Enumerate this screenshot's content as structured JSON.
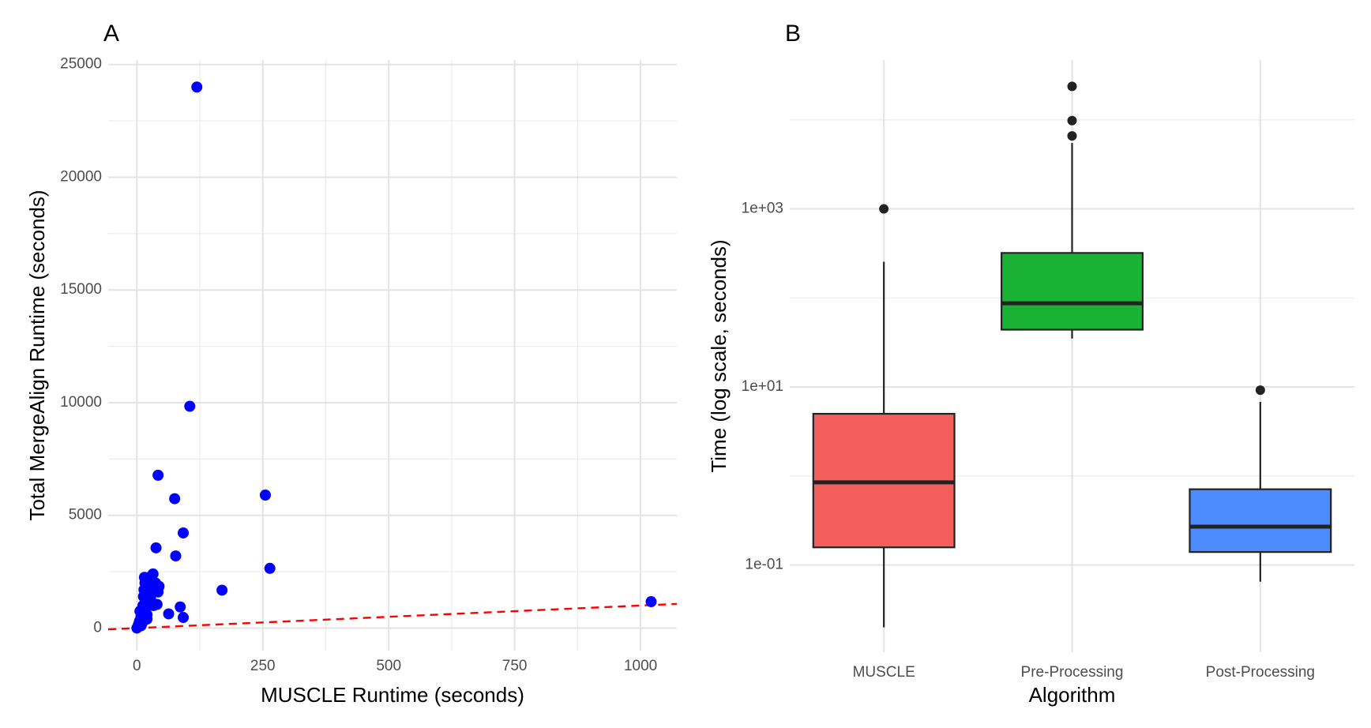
{
  "chart_data": [
    {
      "type": "scatter",
      "panel": "A",
      "x_label": "MUSCLE Runtime (seconds)",
      "y_label": "Total MergeAlign Runtime (seconds)",
      "color": "#0000ff",
      "x": [
        119,
        105,
        42,
        75,
        255,
        92,
        38,
        77,
        264,
        169,
        1021,
        86,
        92,
        63,
        0,
        2,
        3,
        5,
        6,
        8,
        10,
        12,
        13,
        14,
        15,
        17,
        18,
        20,
        22,
        24,
        25,
        27,
        28,
        30,
        32,
        33,
        35,
        37,
        40,
        42,
        44,
        20,
        8,
        16
      ],
      "values": [
        24000,
        9840,
        6780,
        5740,
        5900,
        4220,
        3560,
        3200,
        2650,
        1680,
        1170,
        940,
        470,
        630,
        0,
        50,
        150,
        300,
        750,
        500,
        200,
        1000,
        1400,
        1700,
        2250,
        1200,
        900,
        600,
        1800,
        2100,
        1500,
        1300,
        2300,
        1700,
        2400,
        1000,
        1900,
        2000,
        1050,
        1600,
        1850,
        400,
        100,
        2000
      ],
      "xlim": [
        -57,
        1072
      ],
      "ylim": [
        -1000,
        25200
      ],
      "xticks": [
        0,
        250,
        500,
        750,
        1000
      ],
      "yticks": [
        0,
        5000,
        10000,
        15000,
        20000,
        25000
      ],
      "grid": true,
      "minor_grid": true,
      "reference_line": {
        "slope": 1,
        "intercept": 0,
        "color": "#ff0000",
        "style": "dashed"
      }
    },
    {
      "type": "box",
      "panel": "B",
      "x_label": "Algorithm",
      "y_label": "Time (log scale, seconds)",
      "categories": [
        "MUSCLE",
        "Pre-Processing",
        "Post-Processing"
      ],
      "boxes": [
        {
          "color": "#f25f5c",
          "whisker_low": 0.02,
          "q1": 0.158,
          "median": 0.85,
          "q3": 5.0,
          "whisker_high": 255,
          "outliers": [
            1000
          ]
        },
        {
          "color": "#1ab235",
          "whisker_low": 35,
          "q1": 44,
          "median": 87,
          "q3": 320,
          "whisker_high": 5500,
          "outliers": [
            6600,
            9800,
            23800
          ]
        },
        {
          "color": "#4d8cff",
          "whisker_low": 0.065,
          "q1": 0.14,
          "median": 0.27,
          "q3": 0.71,
          "whisker_high": 6.8,
          "outliers": [
            9.2
          ]
        }
      ],
      "ylim": [
        0.0105,
        47000
      ],
      "log_scale": true,
      "yticks": [
        {
          "value": 0.1,
          "label": "1e-01"
        },
        {
          "value": 10,
          "label": "1e+01"
        },
        {
          "value": 1000,
          "label": "1e+03"
        }
      ],
      "grid": true,
      "minor_grid": true
    }
  ]
}
